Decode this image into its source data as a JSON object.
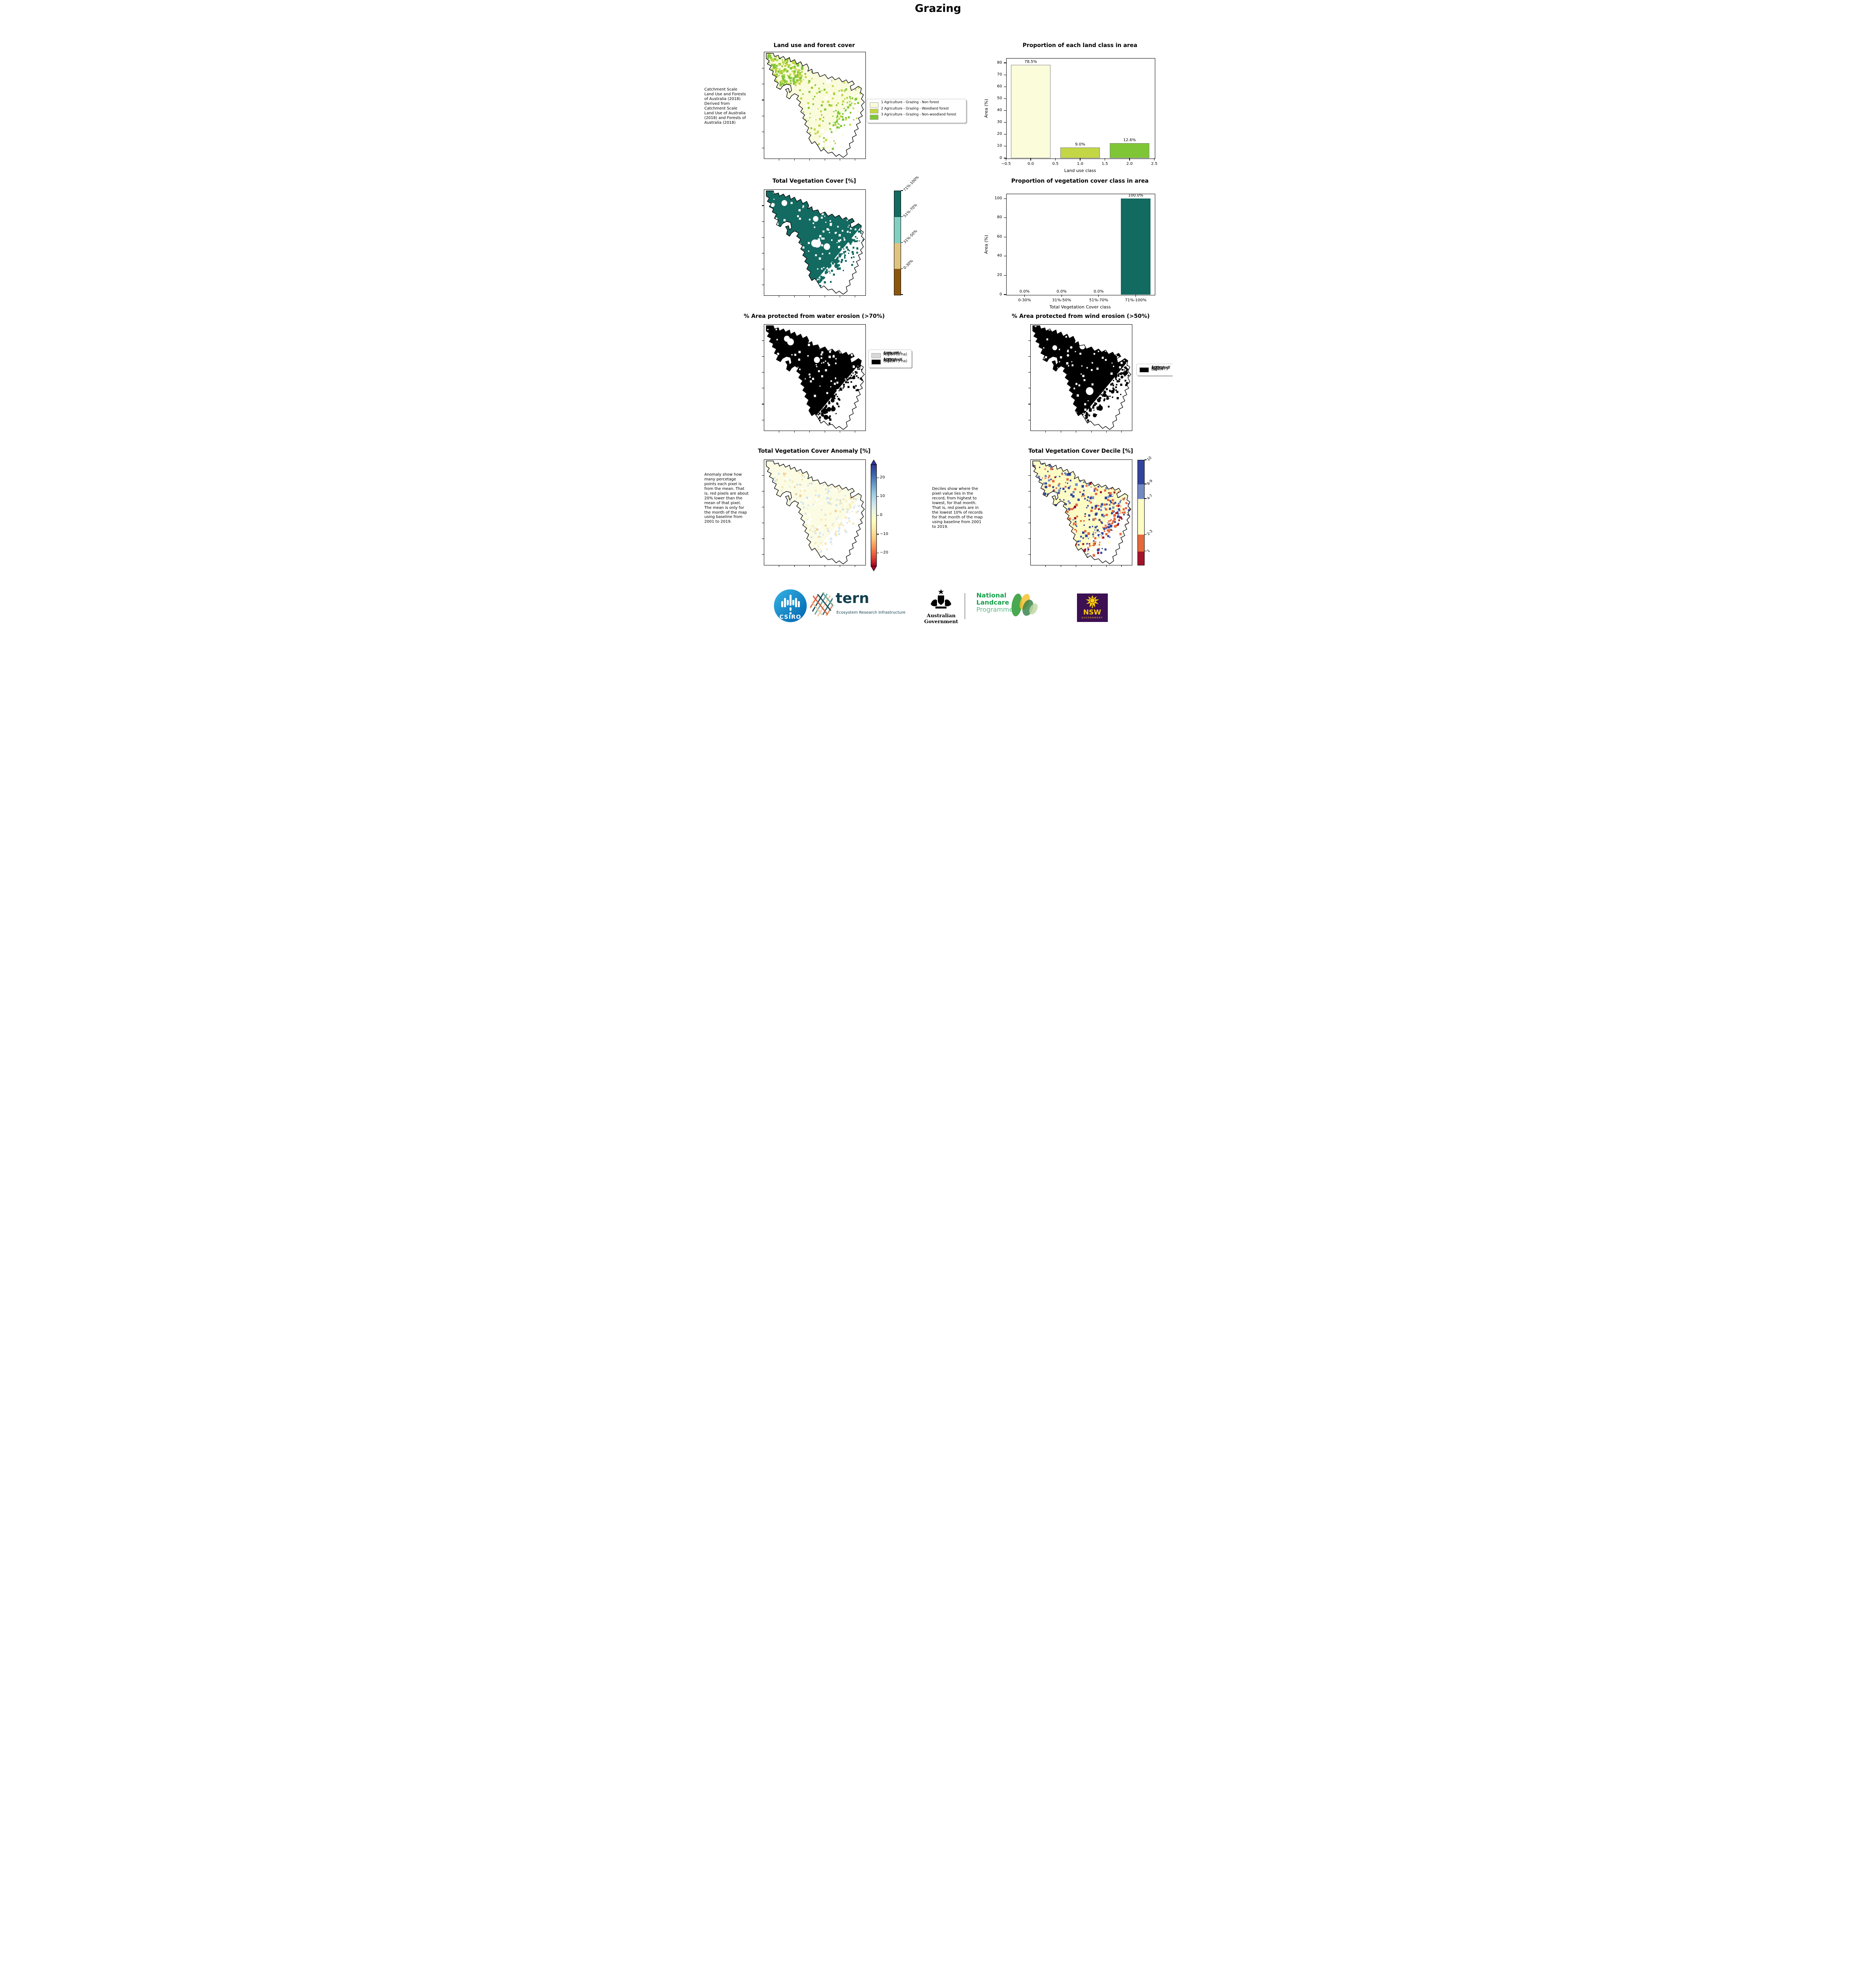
{
  "page": {
    "title": "Grazing"
  },
  "panels": {
    "landuse": {
      "title": "Land use and forest cover",
      "note": " Catchment Scale Land Use and Forests of Australia (2018) Derived from Catchment Scale Land Use of Australia (2018) and Forests of Australia (2018)",
      "legend": [
        {
          "label": "1 Agriculture - Grazing - Non forest",
          "color": "#fafbda"
        },
        {
          "label": "2 Agriculture - Grazing - Woodland forest",
          "color": "#c3d645"
        },
        {
          "label": "3 Agriculture - Grazing - Non-woodland forest",
          "color": "#7fc636"
        }
      ]
    },
    "veg": {
      "title": "Total Vegetation Cover [%]",
      "colorbar": [
        {
          "label": "71%-100%",
          "color": "#136a60"
        },
        {
          "label": "51%-70%",
          "color": "#82cec1"
        },
        {
          "label": "31%-50%",
          "color": "#e0c37f"
        },
        {
          "label": "0-30%",
          "color": "#8a560e"
        }
      ]
    },
    "water": {
      "title": "% Area protected from water erosion (>70%)",
      "legend": [
        {
          "label": "Area not protected 0.0% of region (0 ha)",
          "color": "#d8d8d8"
        },
        {
          "label": "Area protected 100.0% of region (582,875 ha)",
          "color": "#000000"
        }
      ]
    },
    "wind": {
      "title": "% Area protected from wind erosion (>50%)",
      "legend": [
        {
          "label": "Area protected 100.0% of region (582,875 ha)",
          "color": "#000000"
        }
      ]
    },
    "anomaly": {
      "title": "Total Vegetation Cover Anomaly [%]",
      "note": "Anomaly show how many percetage points each pixel is from the mean. That is, red pixels are about 20% lower than the mean of that pixel. The mean is only for the month of the map using baseline from 2001 to 2019.",
      "cbar_ticks": [
        "20",
        "10",
        "0",
        "−10",
        "−20"
      ],
      "gradient": [
        "#313695",
        "#3a62ab",
        "#5e94c6",
        "#93c5de",
        "#c1e0ee",
        "#e7f4e0",
        "#ffffbf",
        "#fee8a4",
        "#fdc87d",
        "#f88d52",
        "#e34933",
        "#a50026"
      ]
    },
    "decile": {
      "title": "Total Vegetation Cover Decile [%]",
      "note": "Deciles show where the pixel value lies in the record, from highest to lowest, for that month. That is, red pixels are in the lowest 10% of records for that month of the map using baseline from 2001 to 2019.",
      "colorbar": [
        {
          "label": "10",
          "color": "#33449c",
          "frac": 0.23
        },
        {
          "label": "8-9",
          "color": "#7289c4",
          "frac": 0.14
        },
        {
          "label": "4-7",
          "color": "#fdfcc4",
          "frac": 0.34
        },
        {
          "label": "2-3",
          "color": "#e4693b",
          "frac": 0.16
        },
        {
          "label": "1",
          "color": "#a31329",
          "frac": 0.13
        }
      ]
    }
  },
  "chart_data": [
    {
      "type": "bar",
      "title": "Proportion of each land class in area",
      "xlabel": "Land use class",
      "ylabel": "Area (%)",
      "categories": [
        0,
        1,
        2
      ],
      "values": [
        78.5,
        9.0,
        12.6
      ],
      "value_labels": [
        "78.5%",
        "9.0%",
        "12.6%"
      ],
      "bar_colors": [
        "#fbfcda",
        "#c3d645",
        "#7fc636"
      ],
      "bar_edge": "#7f7f7f",
      "xlim": [
        -0.5,
        2.5
      ],
      "ylim": [
        0,
        84
      ],
      "xticks": [
        "−0.5",
        "0.0",
        "0.5",
        "1.0",
        "1.5",
        "2.0",
        "2.5"
      ],
      "yticks": [
        0,
        10,
        20,
        30,
        40,
        50,
        60,
        70,
        80
      ],
      "grid": false,
      "legend_position": "none"
    },
    {
      "type": "bar",
      "title": "Proportion of vegetation cover class in area",
      "xlabel": "Total Vegetation Cover class",
      "ylabel": "Area (%)",
      "categories": [
        "0-30%",
        "31%-50%",
        "51%-70%",
        "71%-100%"
      ],
      "values": [
        0.0,
        0.0,
        0.0,
        100.0
      ],
      "value_labels": [
        "0.0%",
        "0.0%",
        "0.0%",
        "100.0%"
      ],
      "bar_colors": [
        "#136a60",
        "#136a60",
        "#136a60",
        "#136a60"
      ],
      "ylim": [
        0,
        105
      ],
      "yticks": [
        0,
        20,
        40,
        60,
        80,
        100
      ],
      "grid": false,
      "legend_position": "none"
    }
  ],
  "map_colors": {
    "landuse_base": "#fafbda",
    "landuse_woodland": "#c3d645",
    "landuse_nonwoodland": "#7fc636",
    "veg_teal": "#136a60",
    "protected_black": "#000000",
    "not_protected_gray": "#d8d8d8",
    "anomaly_base": "#fcfce4",
    "anomaly_blue": "#cfe4f2",
    "anomaly_yellow": "#f6eab8",
    "anomaly_orange": "#f0cf9a",
    "decile_blue": "#33449c",
    "decile_midblue": "#7289c4",
    "decile_yellow": "#fdfcc4",
    "decile_orange": "#e4693b",
    "decile_red": "#a31329",
    "outline": "#000000"
  },
  "footer": {
    "csiro_label": "CSIRO",
    "tern_label": "tern",
    "tern_tagline": "Ecosystem Research Infrastructure",
    "ausgov_label": "Australian Government",
    "landcare_line1": "National",
    "landcare_line2": "Landcare",
    "landcare_line3": "Programme",
    "nsw_label": "NSW",
    "nsw_sub": "GOVERNMENT"
  }
}
